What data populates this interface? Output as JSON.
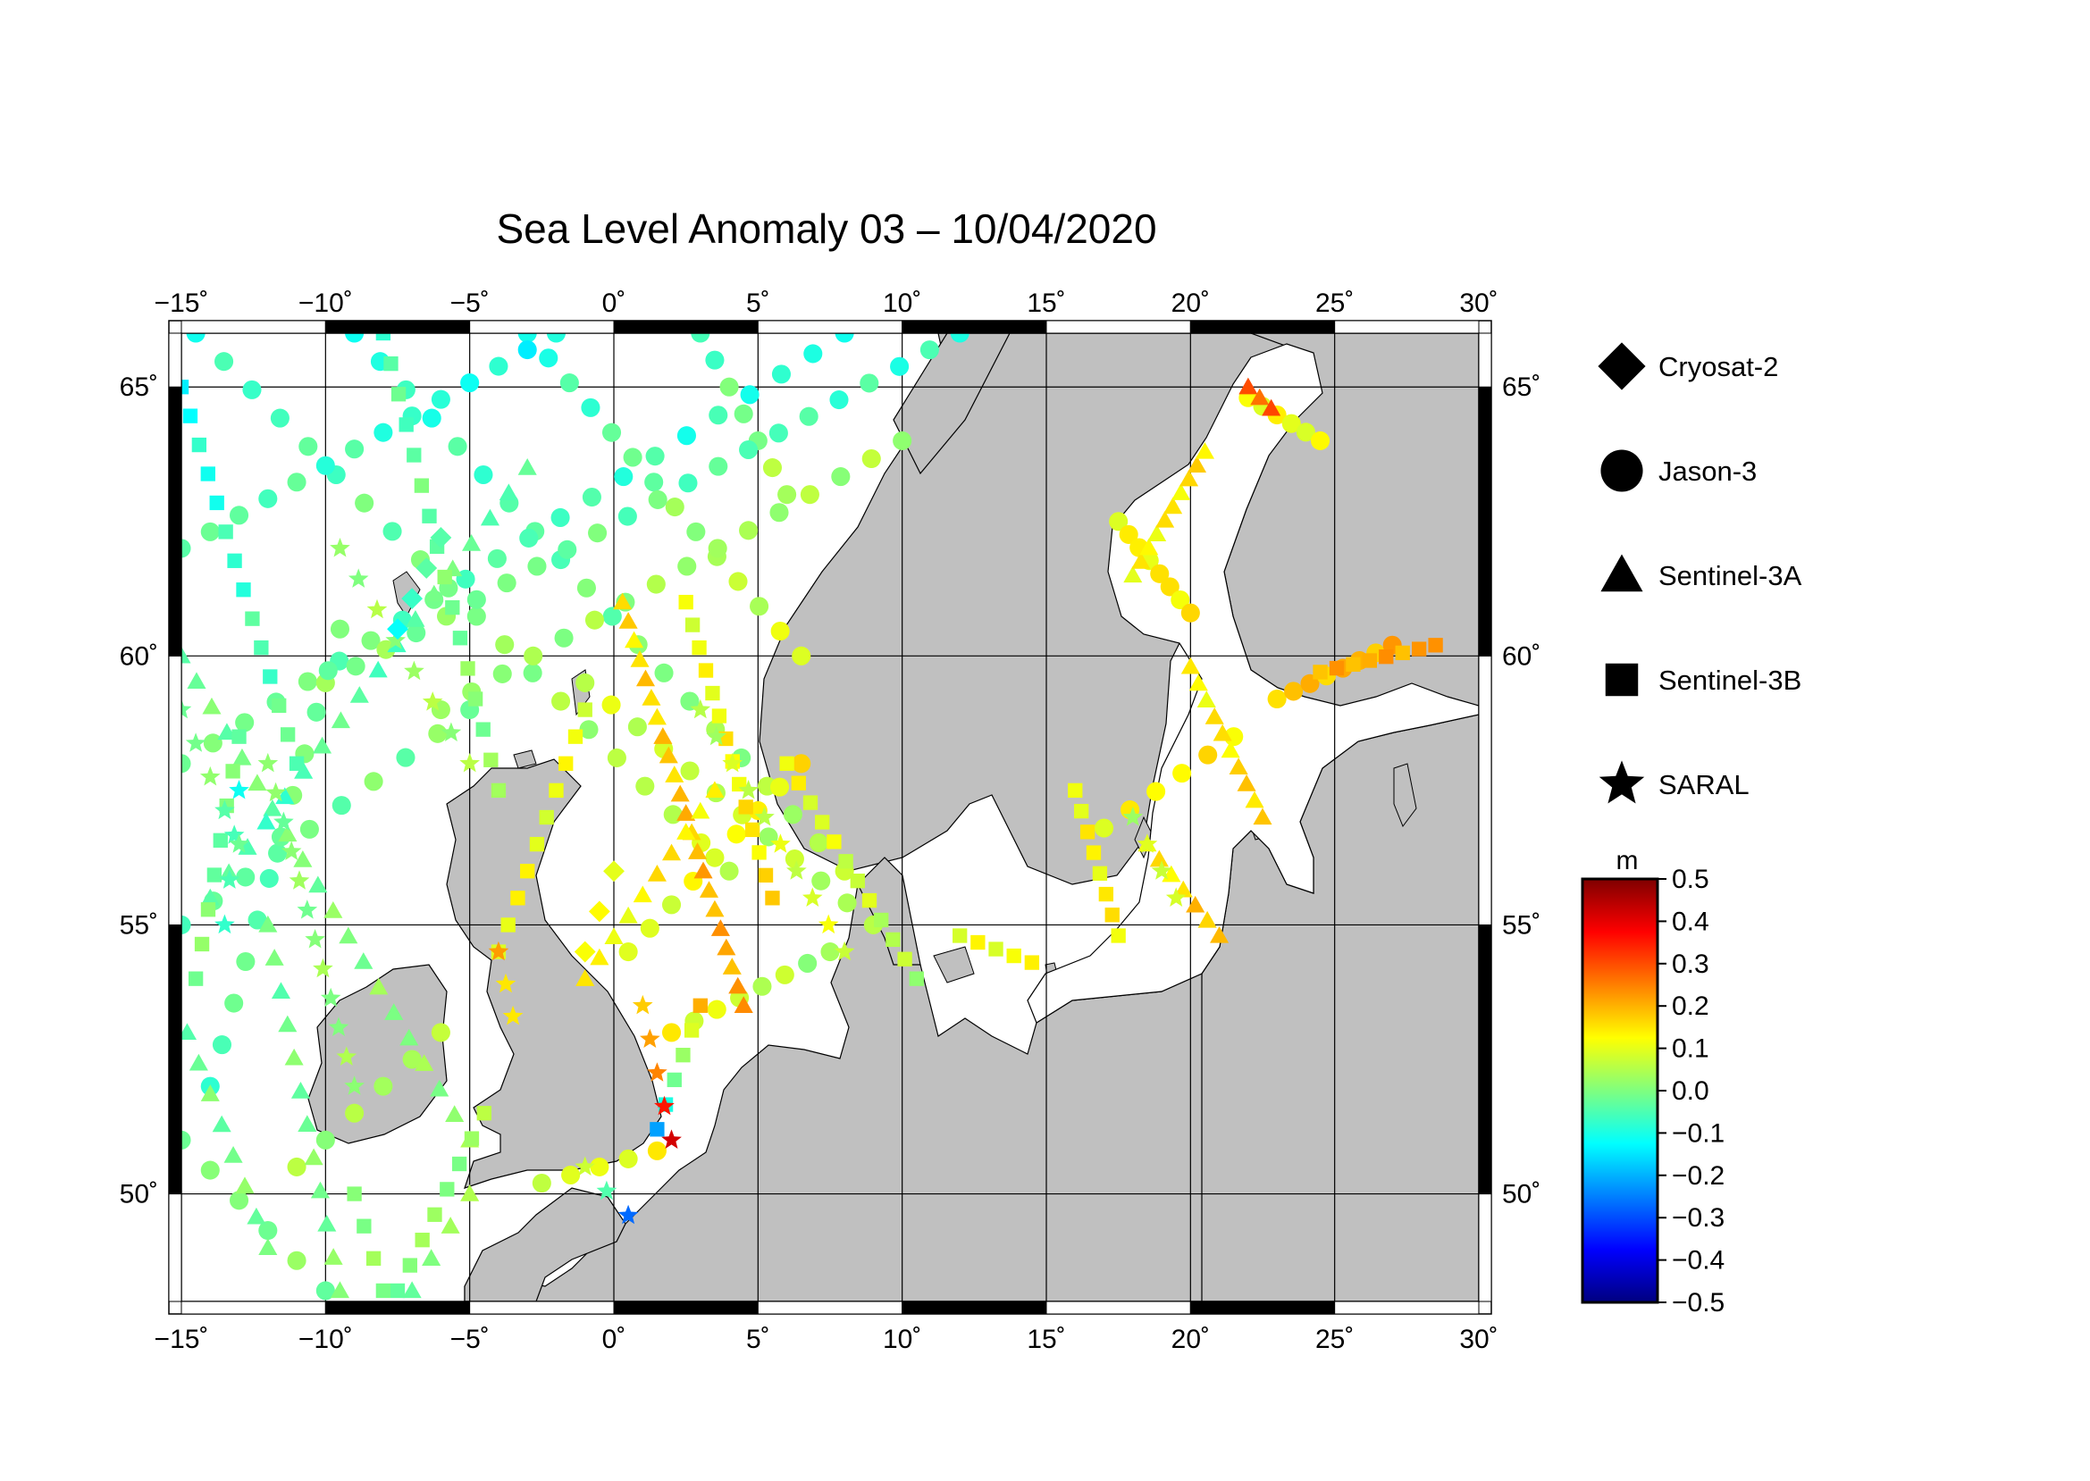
{
  "title": "Sea Level Anomaly 03 – 10/04/2020",
  "map": {
    "lon_range": [
      -15,
      30
    ],
    "lat_range": [
      48,
      66
    ],
    "lon_ticks": [
      {
        "value": -15,
        "label": "−15˚"
      },
      {
        "value": -10,
        "label": "−10˚"
      },
      {
        "value": -5,
        "label": "−5˚"
      },
      {
        "value": 0,
        "label": "0˚"
      },
      {
        "value": 5,
        "label": "5˚"
      },
      {
        "value": 10,
        "label": "10˚"
      },
      {
        "value": 15,
        "label": "15˚"
      },
      {
        "value": 20,
        "label": "20˚"
      },
      {
        "value": 25,
        "label": "25˚"
      },
      {
        "value": 30,
        "label": "30˚"
      }
    ],
    "lat_ticks": [
      {
        "value": 50,
        "label": "50˚"
      },
      {
        "value": 55,
        "label": "55˚"
      },
      {
        "value": 60,
        "label": "60˚"
      },
      {
        "value": 65,
        "label": "65˚"
      }
    ],
    "land_color": "#c0c0c0",
    "sea_color": "#ffffff",
    "grid": true
  },
  "legend": {
    "items": [
      {
        "symbol": "diamond",
        "label": "Cryosat-2"
      },
      {
        "symbol": "circle",
        "label": "Jason-3"
      },
      {
        "symbol": "triangle",
        "label": "Sentinel-3A"
      },
      {
        "symbol": "square",
        "label": "Sentinel-3B"
      },
      {
        "symbol": "star",
        "label": "SARAL"
      }
    ]
  },
  "colorbar": {
    "unit": "m",
    "min": -0.5,
    "max": 0.5,
    "ticks": [
      {
        "value": 0.5,
        "label": "0.5"
      },
      {
        "value": 0.4,
        "label": "0.4"
      },
      {
        "value": 0.3,
        "label": "0.3"
      },
      {
        "value": 0.2,
        "label": "0.2"
      },
      {
        "value": 0.1,
        "label": "0.1"
      },
      {
        "value": 0.0,
        "label": "0.0"
      },
      {
        "value": -0.1,
        "label": "−0.1"
      },
      {
        "value": -0.2,
        "label": "−0.2"
      },
      {
        "value": -0.3,
        "label": "−0.3"
      },
      {
        "value": -0.4,
        "label": "−0.4"
      },
      {
        "value": -0.5,
        "label": "−0.5"
      }
    ],
    "stops": [
      "#00007f",
      "#0000ff",
      "#007fff",
      "#00ffff",
      "#7fff7f",
      "#ffff00",
      "#ff7f00",
      "#ff0000",
      "#7f0000"
    ]
  },
  "chart_data": {
    "type": "scatter",
    "title": "Sea Level Anomaly 03 – 10/04/2020",
    "xlabel": "",
    "ylabel": "",
    "xlim": [
      -15,
      30
    ],
    "ylim": [
      48,
      66
    ],
    "value_unit": "m",
    "value_range": [
      -0.5,
      0.5
    ],
    "series": [
      {
        "name": "Jason-3",
        "marker": "circle",
        "tracks": [
          {
            "start": [
              -14.5,
              66.0
            ],
            "end": [
              4.0,
              56.0
            ],
            "n": 20,
            "v0": -0.08,
            "v1": 0.08
          },
          {
            "start": [
              -9.0,
              66.0
            ],
            "end": [
              8.0,
              56.0
            ],
            "n": 20,
            "v0": -0.1,
            "v1": 0.06
          },
          {
            "start": [
              -3.0,
              66.0
            ],
            "end": [
              6.5,
              60.0
            ],
            "n": 14,
            "v0": -0.1,
            "v1": 0.1
          },
          {
            "start": [
              3.0,
              66.0
            ],
            "end": [
              6.0,
              63.0
            ],
            "n": 7,
            "v0": -0.06,
            "v1": 0.05
          },
          {
            "start": [
              -15.0,
              62.0
            ],
            "end": [
              -2.0,
              66.0
            ],
            "n": 14,
            "v0": -0.02,
            "v1": -0.12
          },
          {
            "start": [
              -15.0,
              58.0
            ],
            "end": [
              8.0,
              66.0
            ],
            "n": 22,
            "v0": 0.0,
            "v1": -0.1
          },
          {
            "start": [
              -10.0,
              59.5
            ],
            "end": [
              12.0,
              66.0
            ],
            "n": 22,
            "v0": 0.02,
            "v1": -0.08
          },
          {
            "start": [
              -6.0,
              59.0
            ],
            "end": [
              10.0,
              64.0
            ],
            "n": 16,
            "v0": 0.02,
            "v1": 0.04
          },
          {
            "start": [
              -15.0,
              55.0
            ],
            "end": [
              -5.0,
              59.0
            ],
            "n": 10,
            "v0": -0.04,
            "v1": 0.0
          },
          {
            "start": [
              -15.0,
              51.0
            ],
            "end": [
              -10.0,
              48.2
            ],
            "n": 6,
            "v0": 0.0,
            "v1": 0.0
          },
          {
            "start": [
              -9.5,
              60.5
            ],
            "end": [
              -14.0,
              52.0
            ],
            "n": 12,
            "v0": 0.0,
            "v1": -0.05
          },
          {
            "start": [
              -1.0,
              59.5
            ],
            "end": [
              9.0,
              55.0
            ],
            "n": 12,
            "v0": 0.08,
            "v1": 0.04
          },
          {
            "start": [
              0.5,
              54.5
            ],
            "end": [
              6.5,
              58.0
            ],
            "n": 9,
            "v0": 0.08,
            "v1": 0.14
          },
          {
            "start": [
              2.0,
              53.0
            ],
            "end": [
              7.5,
              54.5
            ],
            "n": 8,
            "v0": 0.12,
            "v1": 0.02
          },
          {
            "start": [
              17.5,
              62.5
            ],
            "end": [
              20.0,
              60.8
            ],
            "n": 8,
            "v0": 0.12,
            "v1": 0.15
          },
          {
            "start": [
              22.0,
              64.8
            ],
            "end": [
              24.5,
              64.0
            ],
            "n": 6,
            "v0": 0.12,
            "v1": 0.1
          },
          {
            "start": [
              23.0,
              59.2
            ],
            "end": [
              27.0,
              60.2
            ],
            "n": 8,
            "v0": 0.18,
            "v1": 0.2
          },
          {
            "start": [
              17.0,
              56.8
            ],
            "end": [
              21.5,
              58.5
            ],
            "n": 6,
            "v0": 0.12,
            "v1": 0.15
          },
          {
            "start": [
              -11.0,
              50.5
            ],
            "end": [
              -6.0,
              53.0
            ],
            "n": 6,
            "v0": 0.03,
            "v1": 0.05
          },
          {
            "start": [
              -2.5,
              50.2
            ],
            "end": [
              1.5,
              50.8
            ],
            "n": 5,
            "v0": 0.08,
            "v1": 0.12
          }
        ]
      },
      {
        "name": "Sentinel-3A",
        "marker": "triangle",
        "tracks": [
          {
            "start": [
              0.3,
              61.0
            ],
            "end": [
              4.5,
              53.5
            ],
            "n": 22,
            "v0": 0.15,
            "v1": 0.22
          },
          {
            "start": [
              -15.0,
              60.0
            ],
            "end": [
              -5.0,
              51.0
            ],
            "n": 20,
            "v0": -0.02,
            "v1": 0.02
          },
          {
            "start": [
              -12.0,
              55.0
            ],
            "end": [
              -9.5,
              48.2
            ],
            "n": 12,
            "v0": -0.02,
            "v1": 0.0
          },
          {
            "start": [
              -5.0,
              50.0
            ],
            "end": [
              -7.0,
              48.2
            ],
            "n": 4,
            "v0": 0.02,
            "v1": 0.0
          },
          {
            "start": [
              -3.0,
              63.5
            ],
            "end": [
              -14.0,
              55.5
            ],
            "n": 18,
            "v0": -0.02,
            "v1": -0.06
          },
          {
            "start": [
              3.5,
              57.5
            ],
            "end": [
              -1.0,
              54.0
            ],
            "n": 10,
            "v0": 0.15,
            "v1": 0.12
          },
          {
            "start": [
              18.0,
              61.5
            ],
            "end": [
              20.5,
              63.8
            ],
            "n": 10,
            "v0": 0.12,
            "v1": 0.16
          },
          {
            "start": [
              20.0,
              59.8
            ],
            "end": [
              22.5,
              57.0
            ],
            "n": 10,
            "v0": 0.12,
            "v1": 0.18
          },
          {
            "start": [
              22.0,
              65.0
            ],
            "end": [
              22.8,
              64.6
            ],
            "n": 3,
            "v0": 0.3,
            "v1": 0.28
          },
          {
            "start": [
              18.5,
              56.5
            ],
            "end": [
              21.0,
              54.8
            ],
            "n": 7,
            "v0": 0.12,
            "v1": 0.2
          },
          {
            "start": [
              -14.8,
              53.0
            ],
            "end": [
              -12.0,
              49.0
            ],
            "n": 8,
            "v0": -0.02,
            "v1": 0.0
          }
        ]
      },
      {
        "name": "Sentinel-3B",
        "marker": "square",
        "tracks": [
          {
            "start": [
              -15.0,
              65.0
            ],
            "end": [
              -11.0,
              58.0
            ],
            "n": 14,
            "v0": -0.12,
            "v1": -0.02
          },
          {
            "start": [
              -13.0,
              58.5
            ],
            "end": [
              -14.5,
              54.0
            ],
            "n": 8,
            "v0": -0.02,
            "v1": 0.0
          },
          {
            "start": [
              -8.0,
              66.0
            ],
            "end": [
              -4.0,
              57.5
            ],
            "n": 16,
            "v0": -0.05,
            "v1": 0.02
          },
          {
            "start": [
              -1.0,
              59.0
            ],
            "end": [
              -4.0,
              54.5
            ],
            "n": 10,
            "v0": 0.1,
            "v1": 0.12
          },
          {
            "start": [
              2.5,
              61.0
            ],
            "end": [
              5.5,
              55.5
            ],
            "n": 14,
            "v0": 0.1,
            "v1": 0.16
          },
          {
            "start": [
              6.0,
              58.0
            ],
            "end": [
              10.5,
              54.0
            ],
            "n": 12,
            "v0": 0.12,
            "v1": 0.04
          },
          {
            "start": [
              3.0,
              53.5
            ],
            "end": [
              1.5,
              51.2
            ],
            "n": 6,
            "v0": 0.2,
            "v1": -0.2
          },
          {
            "start": [
              -4.5,
              51.5
            ],
            "end": [
              -7.5,
              48.2
            ],
            "n": 8,
            "v0": 0.03,
            "v1": 0.0
          },
          {
            "start": [
              -9.0,
              50.0
            ],
            "end": [
              -8.0,
              48.2
            ],
            "n": 4,
            "v0": 0.02,
            "v1": 0.0
          },
          {
            "start": [
              16.0,
              57.5
            ],
            "end": [
              17.5,
              54.8
            ],
            "n": 8,
            "v0": 0.12,
            "v1": 0.14
          },
          {
            "start": [
              24.5,
              59.7
            ],
            "end": [
              28.5,
              60.2
            ],
            "n": 8,
            "v0": 0.2,
            "v1": 0.22
          },
          {
            "start": [
              12.0,
              54.8
            ],
            "end": [
              14.5,
              54.3
            ],
            "n": 5,
            "v0": 0.1,
            "v1": 0.12
          }
        ]
      },
      {
        "name": "SARAL",
        "marker": "star",
        "tracks": [
          {
            "start": [
              -12.0,
              58.0
            ],
            "end": [
              -9.0,
              52.0
            ],
            "n": 12,
            "v0": 0.0,
            "v1": 0.02
          },
          {
            "start": [
              -9.5,
              62.0
            ],
            "end": [
              -5.0,
              58.0
            ],
            "n": 8,
            "v0": 0.02,
            "v1": 0.04
          },
          {
            "start": [
              3.0,
              59.0
            ],
            "end": [
              8.0,
              54.5
            ],
            "n": 10,
            "v0": 0.05,
            "v1": 0.1
          },
          {
            "start": [
              1.0,
              53.5
            ],
            "end": [
              2.0,
              51.0
            ],
            "n": 5,
            "v0": 0.15,
            "v1": 0.4
          },
          {
            "start": [
              -1.0,
              50.5
            ],
            "end": [
              0.5,
              49.6
            ],
            "n": 3,
            "v0": 0.1,
            "v1": -0.25
          },
          {
            "start": [
              -13.0,
              57.5
            ],
            "end": [
              -13.5,
              55.0
            ],
            "n": 4,
            "v0": -0.1,
            "v1": -0.05
          },
          {
            "start": [
              -4.0,
              54.5
            ],
            "end": [
              -3.5,
              53.3
            ],
            "n": 3,
            "v0": 0.2,
            "v1": 0.15
          },
          {
            "start": [
              18.0,
              57.0
            ],
            "end": [
              19.5,
              55.5
            ],
            "n": 4,
            "v0": 0.05,
            "v1": 0.1
          },
          {
            "start": [
              -15.0,
              59.0
            ],
            "end": [
              -13.0,
              56.5
            ],
            "n": 5,
            "v0": 0.0,
            "v1": -0.02
          }
        ]
      },
      {
        "name": "Cryosat-2",
        "marker": "diamond",
        "tracks": [
          {
            "start": [
              -6.0,
              62.2
            ],
            "end": [
              -7.5,
              60.5
            ],
            "n": 4,
            "v0": -0.05,
            "v1": -0.1
          },
          {
            "start": [
              0.0,
              56.0
            ],
            "end": [
              -1.0,
              54.5
            ],
            "n": 3,
            "v0": 0.1,
            "v1": 0.1
          }
        ]
      }
    ]
  }
}
